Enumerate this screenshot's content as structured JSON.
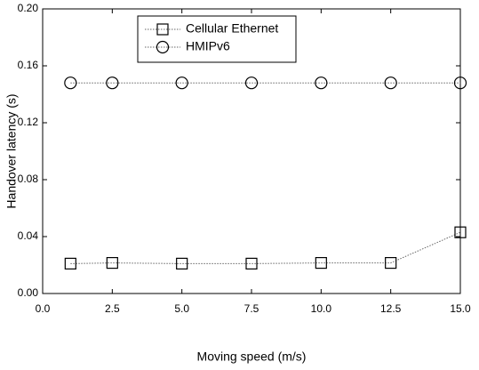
{
  "chart_data": {
    "type": "line",
    "xlabel": "Moving speed (m/s)",
    "ylabel": "Handover latency (s)",
    "x": [
      1,
      2.5,
      5,
      7.5,
      10,
      12.5,
      15
    ],
    "series": [
      {
        "name": "Cellular Ethernet",
        "color": "#000000",
        "marker": "square",
        "values": [
          0.021,
          0.0215,
          0.021,
          0.021,
          0.0215,
          0.0215,
          0.043
        ]
      },
      {
        "name": "HMIPv6",
        "color": "#000000",
        "marker": "circle",
        "values": [
          0.148,
          0.148,
          0.148,
          0.148,
          0.148,
          0.148,
          0.148
        ]
      }
    ],
    "xlim": [
      0,
      15
    ],
    "xticks": [
      {
        "value": 0,
        "label": "0.0"
      },
      2.5,
      {
        "value": 5,
        "label": "5.0"
      },
      7.5,
      {
        "value": 10,
        "label": "10.0"
      },
      12.5,
      {
        "value": 15,
        "label": "15.0"
      }
    ],
    "ylim": [
      0,
      0.2
    ],
    "yticks": [
      {
        "value": 0,
        "label": "0.00"
      },
      0.04,
      0.08,
      0.12,
      0.16,
      {
        "value": 0.2,
        "label": "0.20"
      }
    ],
    "grid": false,
    "legend": "upper center"
  }
}
